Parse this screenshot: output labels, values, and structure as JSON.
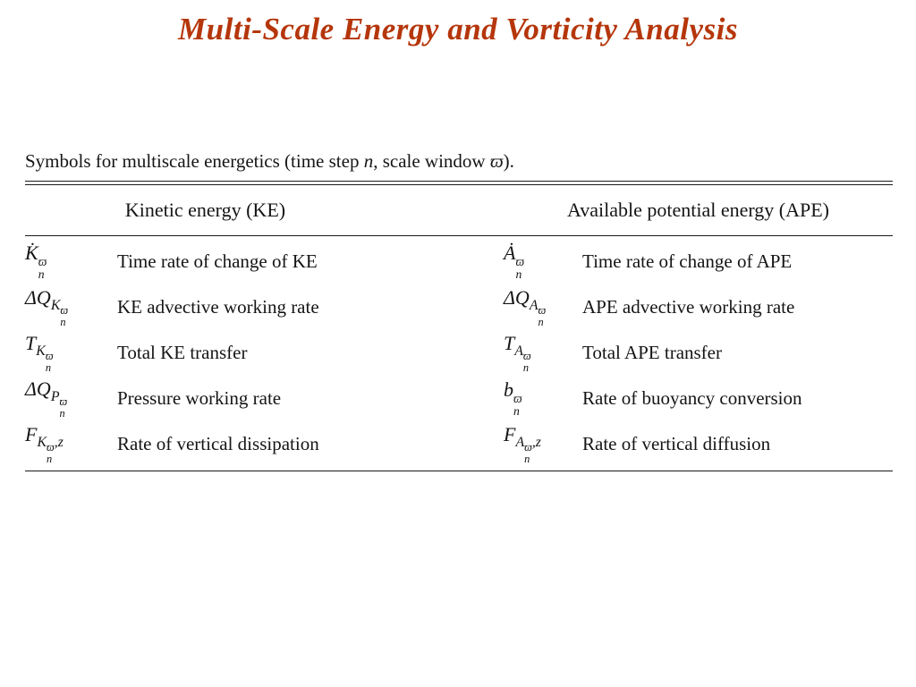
{
  "title": "Multi-Scale Energy and Vorticity Analysis",
  "colors": {
    "title": "#b5360b"
  },
  "table": {
    "caption": {
      "pre": "Symbols for multiscale energetics (time step ",
      "var1": "n",
      "mid": ", scale window ",
      "var2": "ϖ",
      "post": ")."
    },
    "headers": {
      "ke": "Kinetic energy (KE)",
      "ape": "Available potential energy (APE)"
    },
    "rows": [
      {
        "ke": {
          "sym": {
            "base": "K̇",
            "sup": "ϖ",
            "sub": "n"
          },
          "desc": "Time rate of change of KE"
        },
        "ape": {
          "sym": {
            "base": "Ȧ",
            "sup": "ϖ",
            "sub": "n"
          },
          "desc": "Time rate of change of APE"
        }
      },
      {
        "ke": {
          "sym": {
            "base": "ΔQ",
            "subbase": "K",
            "subsup": "ϖ",
            "subsub": "n"
          },
          "desc": "KE advective working rate"
        },
        "ape": {
          "sym": {
            "base": "ΔQ",
            "subbase": "A",
            "subsup": "ϖ",
            "subsub": "n"
          },
          "desc": "APE advective working rate"
        }
      },
      {
        "ke": {
          "sym": {
            "base": "T",
            "subbase": "K",
            "subsup": "ϖ",
            "subsub": "n"
          },
          "desc": "Total KE transfer"
        },
        "ape": {
          "sym": {
            "base": "T",
            "subbase": "A",
            "subsup": "ϖ",
            "subsub": "n"
          },
          "desc": "Total APE transfer"
        }
      },
      {
        "ke": {
          "sym": {
            "base": "ΔQ",
            "subbase": "P",
            "subsup": "ϖ",
            "subsub": "n"
          },
          "desc": "Pressure working rate"
        },
        "ape": {
          "sym": {
            "base": "b",
            "sup": "ϖ",
            "sub": "n"
          },
          "desc": "Rate of buoyancy conversion"
        }
      },
      {
        "ke": {
          "sym": {
            "base": "F",
            "subbase": "K",
            "subsup": "ϖ",
            "subsub": "n",
            "subtail": ",z"
          },
          "desc": "Rate of vertical dissipation"
        },
        "ape": {
          "sym": {
            "base": "F",
            "subbase": "A",
            "subsup": "ϖ",
            "subsub": "n",
            "subtail": ",z"
          },
          "desc": "Rate of vertical diffusion"
        }
      }
    ]
  }
}
